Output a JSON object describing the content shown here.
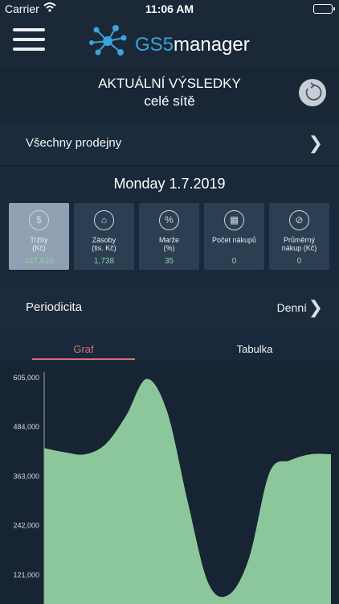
{
  "status_bar": {
    "carrier": "Carrier",
    "time": "11:06 AM"
  },
  "header": {
    "logo_brand": "GS5",
    "logo_product": "manager"
  },
  "results": {
    "title": "AKTUÁLNÍ VÝSLEDKY",
    "subtitle": "celé sítě"
  },
  "stores": {
    "label": "Všechny prodejny"
  },
  "date": "Monday 1.7.2019",
  "metrics": [
    {
      "label": "Tržby\n(Kč)",
      "value": "447,820",
      "icon": "dollar-icon",
      "glyph": "$"
    },
    {
      "label": "Zásoby\n(tis. Kč)",
      "value": "1,738",
      "icon": "store-icon",
      "glyph": "⌂"
    },
    {
      "label": "Marže\n(%)",
      "value": "35",
      "icon": "percent-icon",
      "glyph": "%"
    },
    {
      "label": "Počet nákupů",
      "value": "0",
      "icon": "register-icon",
      "glyph": "▦"
    },
    {
      "label": "Průměrný\nnákup (Kč)",
      "value": "0",
      "icon": "average-icon",
      "glyph": "⊘"
    }
  ],
  "periodicity": {
    "label": "Periodicita",
    "value": "Denní"
  },
  "tabs": {
    "graph": "Graf",
    "table": "Tabulka"
  },
  "colors": {
    "accent_red": "#d86f73",
    "value_green": "#8ed1a0",
    "chart_fill": "#8cc79b",
    "logo_blue": "#3ca3d8"
  },
  "chart_data": {
    "type": "area",
    "ylim": [
      0,
      605000
    ],
    "yticks": [
      "605,000",
      "484,000",
      "363,000",
      "242,000",
      "121,000"
    ],
    "ytick_values": [
      605000,
      484000,
      363000,
      242000,
      121000
    ],
    "series": [
      {
        "values": [
          430000,
          420000,
          415000,
          440000,
          510000,
          600000,
          520000,
          300000,
          100000,
          70000,
          160000,
          370000,
          400000,
          415000,
          415000
        ]
      }
    ]
  }
}
